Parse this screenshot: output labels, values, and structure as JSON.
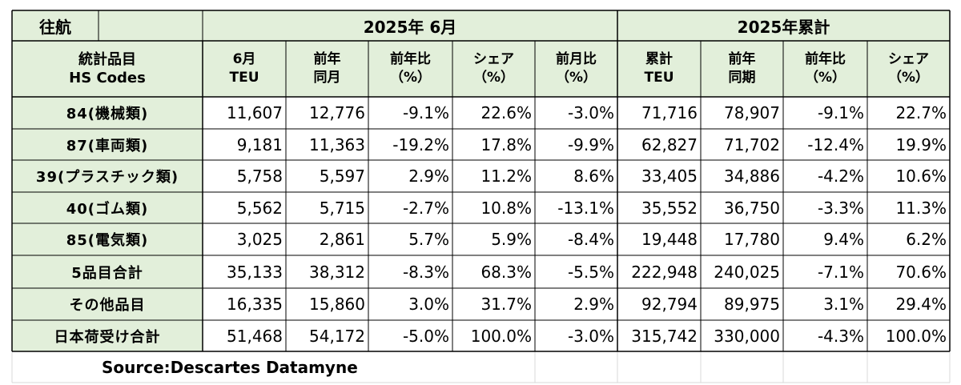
{
  "table": {
    "corner_label": "往航",
    "group_headers": [
      "2025年 6月",
      "2025年累計"
    ],
    "col_headers": [
      [
        "統計品目",
        "HS Codes"
      ],
      [
        "6月",
        "TEU"
      ],
      [
        "前年",
        "同月"
      ],
      [
        "前年比",
        "（%）"
      ],
      [
        "シェア",
        "（%）"
      ],
      [
        "前月比",
        "（%）"
      ],
      [
        "累計",
        "TEU"
      ],
      [
        "前年",
        "同期"
      ],
      [
        "前年比",
        "（%）"
      ],
      [
        "シェア",
        "（%）"
      ]
    ],
    "rows": [
      {
        "label": "84(機械類)",
        "values": [
          "11,607",
          "12,776",
          "-9.1%",
          "22.6%",
          "-3.0%",
          "71,716",
          "78,907",
          "-9.1%",
          "22.7%"
        ]
      },
      {
        "label": "87(車両類)",
        "values": [
          "9,181",
          "11,363",
          "-19.2%",
          "17.8%",
          "-9.9%",
          "62,827",
          "71,702",
          "-12.4%",
          "19.9%"
        ]
      },
      {
        "label": "39(プラスチック類)",
        "values": [
          "5,758",
          "5,597",
          "2.9%",
          "11.2%",
          "8.6%",
          "33,405",
          "34,886",
          "-4.2%",
          "10.6%"
        ]
      },
      {
        "label": "40(ゴム類)",
        "values": [
          "5,562",
          "5,715",
          "-2.7%",
          "10.8%",
          "-13.1%",
          "35,552",
          "36,750",
          "-3.3%",
          "11.3%"
        ]
      },
      {
        "label": "85(電気類)",
        "values": [
          "3,025",
          "2,861",
          "5.7%",
          "5.9%",
          "-8.4%",
          "19,448",
          "17,780",
          "9.4%",
          "6.2%"
        ]
      },
      {
        "label": "5品目合計",
        "values": [
          "35,133",
          "38,312",
          "-8.3%",
          "68.3%",
          "-5.5%",
          "222,948",
          "240,025",
          "-7.1%",
          "70.6%"
        ]
      },
      {
        "label": "その他品目",
        "values": [
          "16,335",
          "15,860",
          "3.0%",
          "31.7%",
          "2.9%",
          "92,794",
          "89,975",
          "3.1%",
          "29.4%"
        ]
      },
      {
        "label": "日本荷受け合計",
        "values": [
          "51,468",
          "54,172",
          "-5.0%",
          "100.0%",
          "-3.0%",
          "315,742",
          "330,000",
          "-4.3%",
          "100.0%"
        ]
      }
    ],
    "source": "Source:Descartes  Datamyne",
    "colors": {
      "header_fill": "#e2efda",
      "grid_dark": "#000000",
      "grid_light": "#d9d9d9"
    }
  }
}
